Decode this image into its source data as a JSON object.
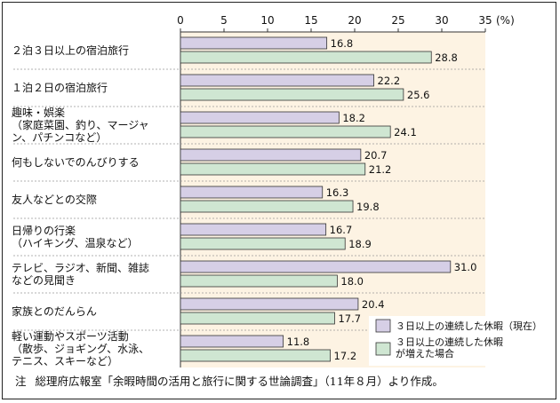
{
  "chart_data": {
    "type": "bar",
    "orientation": "horizontal",
    "unit_label": "(%)",
    "xlim": [
      0,
      35
    ],
    "ticks": [
      "0",
      "5",
      "10",
      "15",
      "20",
      "25",
      "30",
      "35"
    ],
    "categories": [
      [
        "２泊３日以上の宿泊旅行"
      ],
      [
        "１泊２日の宿泊旅行"
      ],
      [
        "趣味・娯楽",
        "（家庭菜園、釣り、マージャ",
        "ン、パチンコなど）"
      ],
      [
        "何もしないでのんびりする"
      ],
      [
        "友人などとの交際"
      ],
      [
        "日帰りの行楽",
        "（ハイキング、温泉など）"
      ],
      [
        "テレビ、ラジオ、新聞、雑誌",
        "などの見聞き"
      ],
      [
        "家族とのだんらん"
      ],
      [
        "軽い運動やスポーツ活動",
        "（散歩、ジョギング、水泳、",
        "テニス、スキーなど）"
      ]
    ],
    "series": [
      {
        "name": "３日以上の連続した休暇（現在）",
        "color": "#d6cfe6",
        "values": [
          16.8,
          22.2,
          18.2,
          20.7,
          16.3,
          16.7,
          31.0,
          20.4,
          11.8
        ],
        "labels": [
          "16.8",
          "22.2",
          "18.2",
          "20.7",
          "16.3",
          "16.7",
          "31.0",
          "20.4",
          "11.8"
        ]
      },
      {
        "name": "３日以上の連続した休暇が増えた場合",
        "name_lines": [
          "３日以上の連続した休暇",
          "が増えた場合"
        ],
        "color": "#cfe6d2",
        "values": [
          28.8,
          25.6,
          24.1,
          21.2,
          19.8,
          18.9,
          18.0,
          17.7,
          17.2
        ],
        "labels": [
          "28.8",
          "25.6",
          "24.1",
          "21.2",
          "19.8",
          "18.9",
          "18.0",
          "17.7",
          "17.2"
        ]
      }
    ],
    "plot_background": "#fdf3e3",
    "legend_position": "bottom-right"
  },
  "note": {
    "prefix": "注",
    "text": "総理府広報室「余暇時間の活用と旅行に関する世論調査」（11年８月）より作成。"
  }
}
